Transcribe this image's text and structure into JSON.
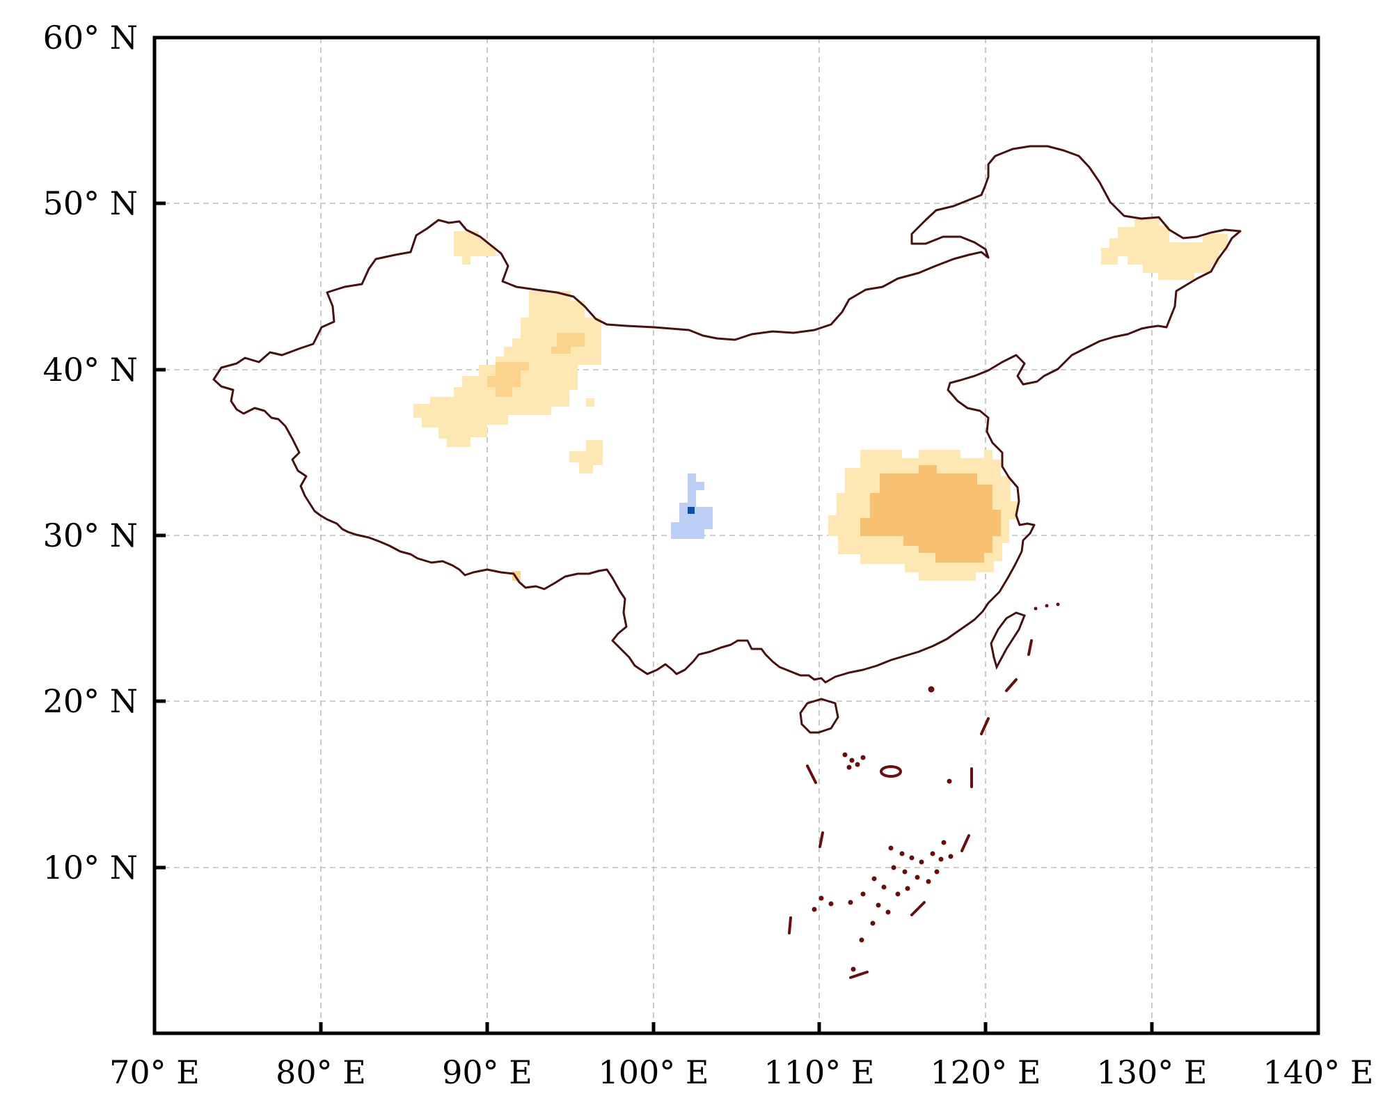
{
  "map": {
    "lon_range": [
      70,
      140
    ],
    "lat_range": [
      0,
      60
    ],
    "grid": true,
    "x_ticks": [
      {
        "value": 70,
        "label": "70° E"
      },
      {
        "value": 80,
        "label": "80° E"
      },
      {
        "value": 90,
        "label": "90° E"
      },
      {
        "value": 100,
        "label": "100° E"
      },
      {
        "value": 110,
        "label": "110° E"
      },
      {
        "value": 120,
        "label": "120° E"
      },
      {
        "value": 130,
        "label": "130° E"
      },
      {
        "value": 140,
        "label": "140° E"
      }
    ],
    "y_ticks": [
      {
        "value": 10,
        "label": "10° N"
      },
      {
        "value": 20,
        "label": "20° N"
      },
      {
        "value": 30,
        "label": "30° N"
      },
      {
        "value": 40,
        "label": "40° N"
      },
      {
        "value": 50,
        "label": "50° N"
      },
      {
        "value": 60,
        "label": "60° N"
      }
    ],
    "colors": {
      "border": "#4a0f0f",
      "islands": "#6b0d0d",
      "grid": "#bdbdbd",
      "frame": "#000000",
      "pale_orange": "#fde8b4",
      "light_orange": "#fbd38d",
      "mid_orange": "#f8c172",
      "pale_blue": "#bcd0f7",
      "dark_blue": "#0d4fa8"
    }
  }
}
